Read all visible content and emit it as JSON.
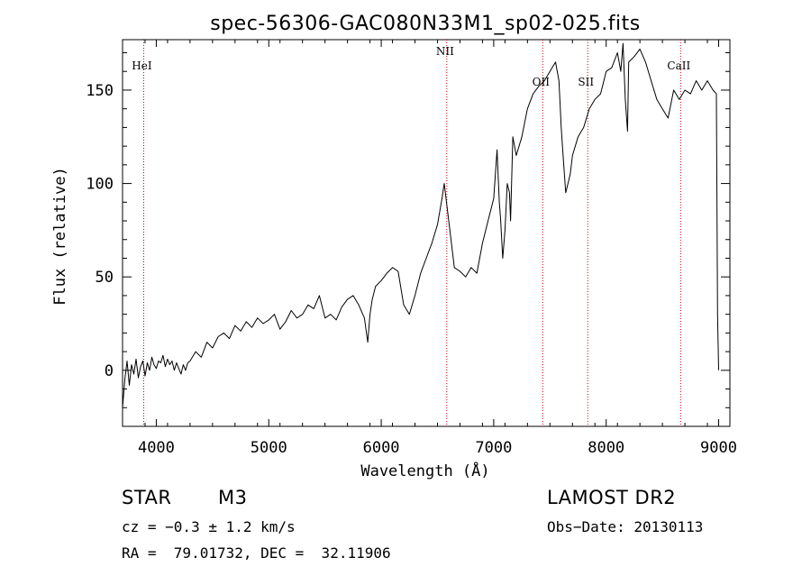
{
  "chart_data": {
    "type": "line",
    "title": "spec-56306-GAC080N33M1_sp02-025.fits",
    "xlabel": "Wavelength (Å)",
    "ylabel": "Flux (relative)",
    "xlim": [
      3700,
      9100
    ],
    "ylim": [
      -30,
      177
    ],
    "xticks": [
      4000,
      5000,
      6000,
      7000,
      8000,
      9000
    ],
    "yticks": [
      0,
      50,
      100,
      150
    ],
    "grid": false,
    "series": [
      {
        "x": [
          3700,
          3720,
          3740,
          3760,
          3780,
          3800,
          3820,
          3840,
          3860,
          3880,
          3900,
          3920,
          3940,
          3960,
          3980,
          4000,
          4020,
          4040,
          4060,
          4080,
          4100,
          4120,
          4140,
          4160,
          4180,
          4200,
          4220,
          4240,
          4260,
          4280,
          4300,
          4350,
          4400,
          4450,
          4500,
          4550,
          4600,
          4650,
          4700,
          4750,
          4800,
          4850,
          4900,
          4950,
          5000,
          5050,
          5100,
          5150,
          5200,
          5250,
          5300,
          5350,
          5400,
          5450,
          5500,
          5550,
          5600,
          5650,
          5700,
          5750,
          5800,
          5850,
          5880,
          5900,
          5920,
          5950,
          6000,
          6050,
          6100,
          6150,
          6200,
          6250,
          6300,
          6350,
          6400,
          6450,
          6500,
          6540,
          6560,
          6580,
          6600,
          6650,
          6700,
          6750,
          6800,
          6850,
          6900,
          6950,
          7000,
          7030,
          7050,
          7060,
          7080,
          7100,
          7120,
          7140,
          7150,
          7170,
          7200,
          7250,
          7300,
          7350,
          7400,
          7450,
          7500,
          7550,
          7580,
          7600,
          7620,
          7640,
          7660,
          7680,
          7700,
          7750,
          7800,
          7850,
          7900,
          7950,
          8000,
          8050,
          8100,
          8130,
          8150,
          8170,
          8190,
          8200,
          8250,
          8300,
          8350,
          8400,
          8450,
          8500,
          8550,
          8600,
          8650,
          8700,
          8750,
          8800,
          8850,
          8900,
          8950,
          8980,
          8990,
          9000
        ],
        "y": [
          -20,
          -5,
          5,
          -8,
          3,
          -2,
          6,
          -4,
          2,
          5,
          -3,
          4,
          0,
          7,
          3,
          1,
          5,
          4,
          8,
          2,
          6,
          3,
          5,
          0,
          4,
          1,
          -2,
          3,
          0,
          4,
          5,
          10,
          7,
          15,
          12,
          18,
          20,
          17,
          24,
          21,
          26,
          23,
          28,
          25,
          27,
          30,
          22,
          26,
          32,
          28,
          30,
          35,
          33,
          40,
          28,
          30,
          27,
          34,
          38,
          40,
          35,
          28,
          15,
          30,
          38,
          45,
          48,
          52,
          55,
          53,
          35,
          30,
          40,
          52,
          60,
          68,
          78,
          92,
          100,
          90,
          80,
          55,
          53,
          50,
          55,
          52,
          68,
          80,
          92,
          118,
          90,
          82,
          60,
          75,
          100,
          95,
          80,
          125,
          115,
          125,
          140,
          148,
          152,
          155,
          160,
          165,
          155,
          130,
          112,
          95,
          100,
          105,
          115,
          125,
          130,
          140,
          145,
          148,
          160,
          162,
          170,
          160,
          175,
          145,
          128,
          165,
          168,
          172,
          165,
          155,
          145,
          140,
          135,
          150,
          145,
          150,
          148,
          155,
          150,
          155,
          150,
          148,
          30,
          0
        ]
      }
    ],
    "annotations": [
      {
        "label": "HeI",
        "x": 3888
      },
      {
        "label": "NII",
        "x": 6583
      },
      {
        "label": "OII",
        "x": 7436
      },
      {
        "label": "SII",
        "x": 7836
      },
      {
        "label": "CaII",
        "x": 8662
      }
    ]
  },
  "info": {
    "object_class": "STAR",
    "subclass": "M3",
    "cz_line": "cz = −0.3 ± 1.2 km/s",
    "radec_line": "RA =  79.01732, DEC =  32.11906",
    "survey": "LAMOST DR2",
    "obs_date": "Obs−Date: 20130113"
  },
  "colors": {
    "spectrum": "#000000",
    "marker_lines": "#cc0000",
    "axes": "#000000",
    "background": "#ffffff"
  }
}
